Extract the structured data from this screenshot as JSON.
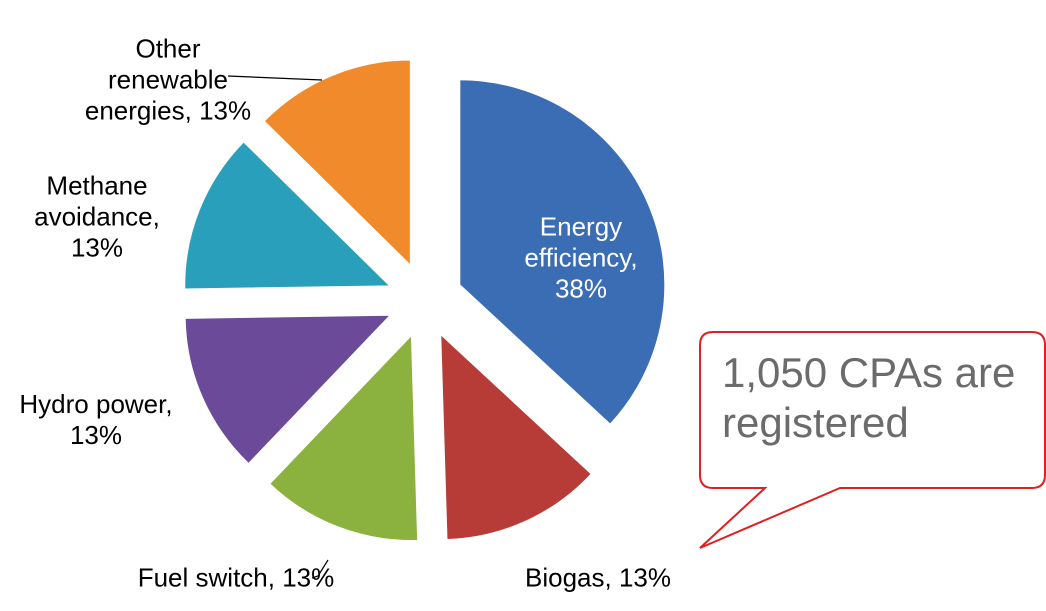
{
  "chart_data": {
    "type": "pie",
    "categories": [
      "Energy efficiency,",
      "Biogas,",
      "Fuel switch,",
      "Hydro power,",
      "Methane avoidance,",
      "Other renewable energies,"
    ],
    "values": [
      38,
      13,
      13,
      13,
      13,
      13
    ],
    "value_labels": [
      "38%",
      "13%",
      "13%",
      "13%",
      "13%",
      "13%"
    ],
    "colors": [
      "#3a6db4",
      "#b73b37",
      "#8bb13f",
      "#6a4a99",
      "#2a9fbc",
      "#f08a2b"
    ],
    "annotation": "1,050 CPAs are registered"
  }
}
